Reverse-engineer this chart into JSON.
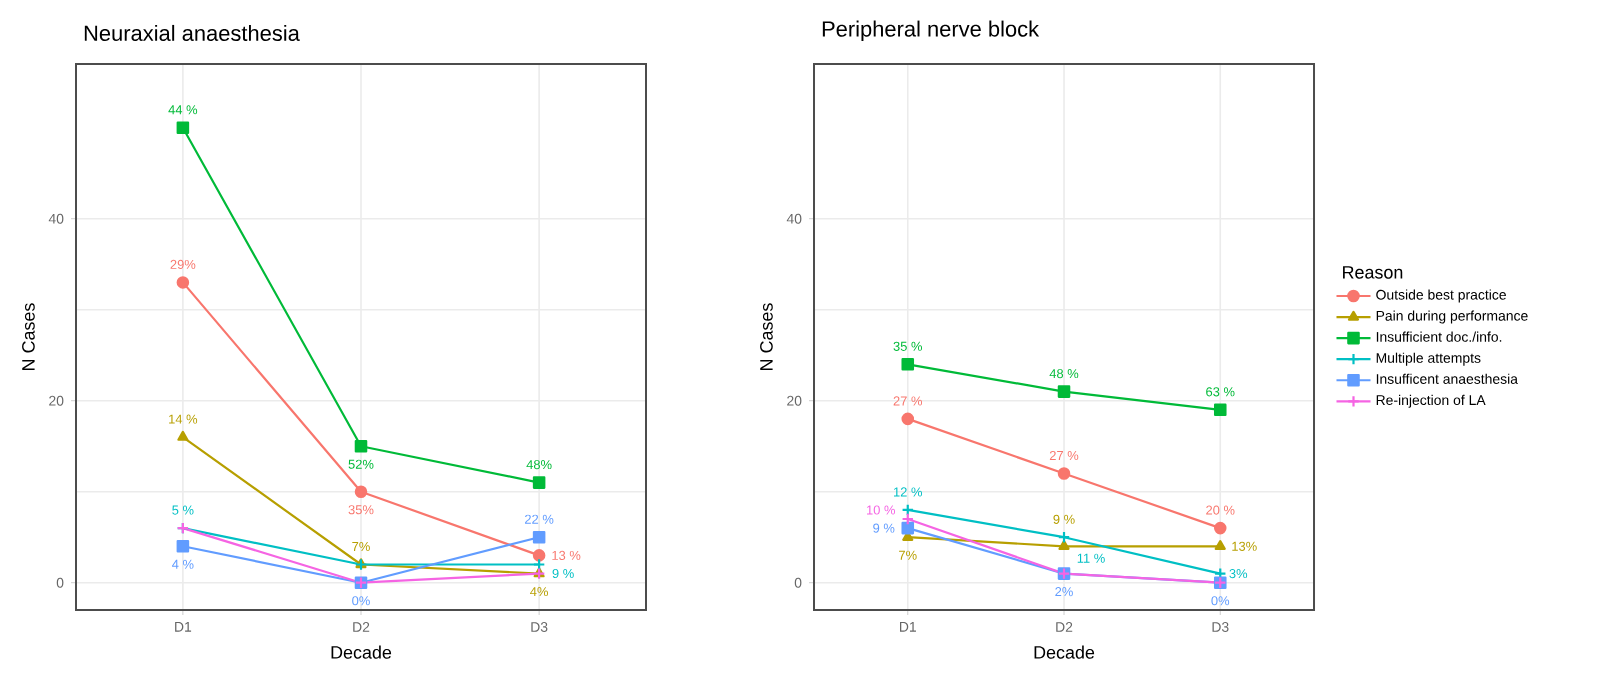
{
  "chart_data": [
    {
      "type": "line",
      "title": "Neuraxial anaesthesia",
      "xlabel": "Decade",
      "ylabel": "N Cases",
      "categories": [
        "D1",
        "D2",
        "D3"
      ],
      "ylim": [
        -3,
        57
      ],
      "yticks": [
        0,
        20,
        40
      ],
      "grid": true,
      "legend": false,
      "series": [
        {
          "color": "#F8766D",
          "marker": "circle",
          "values": [
            33,
            10,
            3
          ]
        },
        {
          "color": "#B79F00",
          "marker": "triangle",
          "values": [
            16,
            2,
            1
          ]
        },
        {
          "color": "#00BA38",
          "marker": "square",
          "values": [
            50,
            15,
            11
          ]
        },
        {
          "color": "#00BFC4",
          "marker": "cross",
          "values": [
            6,
            2,
            2
          ]
        },
        {
          "color": "#619CFF",
          "marker": "square",
          "values": [
            4,
            0,
            5
          ]
        },
        {
          "color": "#F564E3",
          "marker": "cross",
          "values": [
            6,
            0,
            1
          ]
        }
      ],
      "annotations": [
        {
          "text": "29%",
          "x": "D1",
          "y": 33
        },
        {
          "text": "35%",
          "x": "D2",
          "y": 10
        },
        {
          "text": "13 %",
          "x": "D3",
          "y": 3
        },
        {
          "text": "14 %",
          "x": "D1",
          "y": 16
        },
        {
          "text": "7%",
          "x": "D2",
          "y": 2
        },
        {
          "text": "4%",
          "x": "D3",
          "y": 1
        },
        {
          "text": "44 %",
          "x": "D1",
          "y": 50
        },
        {
          "text": "52%",
          "x": "D2",
          "y": 15
        },
        {
          "text": "48%",
          "x": "D3",
          "y": 11
        },
        {
          "text": "5 %",
          "x": "D1",
          "y": 6
        },
        {
          "text": "9 %",
          "x": "D3",
          "y": 2
        },
        {
          "text": "4 %",
          "x": "D1",
          "y": 4
        },
        {
          "text": "0%",
          "x": "D2",
          "y": 0
        },
        {
          "text": "22 %",
          "x": "D3",
          "y": 5
        }
      ]
    },
    {
      "type": "line",
      "title": "Peripheral nerve block",
      "xlabel": "Decade",
      "ylabel": "N Cases",
      "categories": [
        "D1",
        "D2",
        "D3"
      ],
      "ylim": [
        -3,
        57
      ],
      "yticks": [
        0,
        20,
        40
      ],
      "grid": true,
      "legend": "right",
      "legend_title": "Reason",
      "series": [
        {
          "name": "Outside best practice",
          "color": "#F8766D",
          "marker": "circle",
          "values": [
            18,
            12,
            6
          ]
        },
        {
          "name": "Pain during performance",
          "color": "#B79F00",
          "marker": "triangle",
          "values": [
            5,
            4,
            4
          ]
        },
        {
          "name": "Insufficient doc./info.",
          "color": "#00BA38",
          "marker": "square",
          "values": [
            24,
            21,
            19
          ]
        },
        {
          "name": "Multiple attempts",
          "color": "#00BFC4",
          "marker": "cross",
          "values": [
            8,
            5,
            1
          ]
        },
        {
          "name": "Insufficent anaesthesia",
          "color": "#619CFF",
          "marker": "square",
          "values": [
            6,
            1,
            0
          ]
        },
        {
          "name": "Re-injection of LA",
          "color": "#F564E3",
          "marker": "cross",
          "values": [
            7,
            1,
            0
          ]
        }
      ],
      "annotations": [
        {
          "text": "27 %",
          "x": "D1",
          "y": 18
        },
        {
          "text": "27 %",
          "x": "D2",
          "y": 12
        },
        {
          "text": "20 %",
          "x": "D3",
          "y": 6
        },
        {
          "text": "7%",
          "x": "D1",
          "y": 5
        },
        {
          "text": "9 %",
          "x": "D2",
          "y": 4
        },
        {
          "text": "13%",
          "x": "D3",
          "y": 4
        },
        {
          "text": "35 %",
          "x": "D1",
          "y": 24
        },
        {
          "text": "48 %",
          "x": "D2",
          "y": 21
        },
        {
          "text": "63 %",
          "x": "D3",
          "y": 19
        },
        {
          "text": "12 %",
          "x": "D1",
          "y": 8
        },
        {
          "text": "11 %",
          "x": "D2",
          "y": 5
        },
        {
          "text": "3%",
          "x": "D3",
          "y": 1
        },
        {
          "text": "9 %",
          "x": "D1",
          "y": 6
        },
        {
          "text": "2%",
          "x": "D2",
          "y": 1
        },
        {
          "text": "0%",
          "x": "D3",
          "y": 0
        },
        {
          "text": "10 %",
          "x": "D1",
          "y": 7
        }
      ]
    }
  ]
}
